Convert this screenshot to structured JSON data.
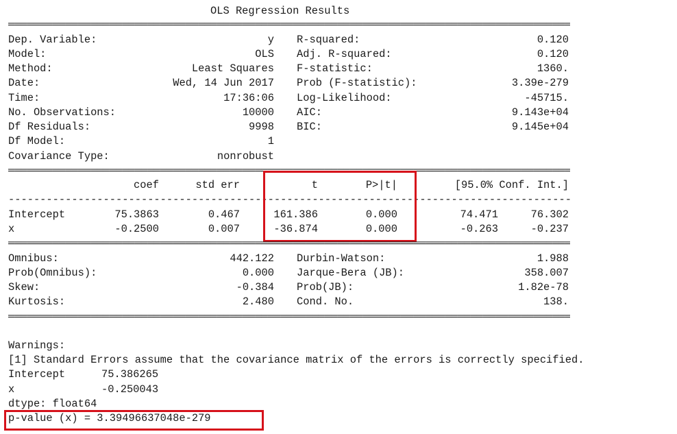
{
  "title": "OLS Regression Results",
  "top": {
    "left": [
      {
        "label": "Dep. Variable:",
        "value": "y"
      },
      {
        "label": "Model:",
        "value": "OLS"
      },
      {
        "label": "Method:",
        "value": "Least Squares"
      },
      {
        "label": "Date:",
        "value": "Wed, 14 Jun 2017"
      },
      {
        "label": "Time:",
        "value": "17:36:06"
      },
      {
        "label": "No. Observations:",
        "value": "10000"
      },
      {
        "label": "Df Residuals:",
        "value": "9998"
      },
      {
        "label": "Df Model:",
        "value": "1"
      },
      {
        "label": "Covariance Type:",
        "value": "nonrobust"
      }
    ],
    "right": [
      {
        "label": "R-squared:",
        "value": "0.120"
      },
      {
        "label": "Adj. R-squared:",
        "value": "0.120"
      },
      {
        "label": "F-statistic:",
        "value": "1360."
      },
      {
        "label": "Prob (F-statistic):",
        "value": "3.39e-279"
      },
      {
        "label": "Log-Likelihood:",
        "value": "-45715."
      },
      {
        "label": "AIC:",
        "value": "9.143e+04"
      },
      {
        "label": "BIC:",
        "value": "9.145e+04"
      }
    ]
  },
  "coef_table": {
    "headers": [
      "coef",
      "std err",
      "t",
      "P>|t|",
      "[95.0% Conf. Int.]"
    ],
    "rows": [
      {
        "name": "Intercept",
        "coef": "75.3863",
        "std_err": "0.467",
        "t": "161.386",
        "p": "0.000",
        "ci_low": "74.471",
        "ci_high": "76.302"
      },
      {
        "name": "x",
        "coef": "-0.2500",
        "std_err": "0.007",
        "t": "-36.874",
        "p": "0.000",
        "ci_low": "-0.263",
        "ci_high": "-0.237"
      }
    ]
  },
  "bottom": {
    "left": [
      {
        "label": "Omnibus:",
        "value": "442.122"
      },
      {
        "label": "Prob(Omnibus):",
        "value": "0.000"
      },
      {
        "label": "Skew:",
        "value": "-0.384"
      },
      {
        "label": "Kurtosis:",
        "value": "2.480"
      }
    ],
    "right": [
      {
        "label": "Durbin-Watson:",
        "value": "1.988"
      },
      {
        "label": "Jarque-Bera (JB):",
        "value": "358.007"
      },
      {
        "label": "Prob(JB):",
        "value": "1.82e-78"
      },
      {
        "label": "Cond. No.",
        "value": "138."
      }
    ]
  },
  "warnings": {
    "heading": "Warnings:",
    "text": "[1] Standard Errors assume that the covariance matrix of the errors is correctly specified."
  },
  "params": [
    {
      "name": "Intercept",
      "value": "75.386265"
    },
    {
      "name": "x",
      "value": "-0.250043"
    }
  ],
  "dtype": "dtype: float64",
  "pvalue_line": "p-value (x) = 3.39496637048e-279",
  "highlight_color": "#d6121b"
}
